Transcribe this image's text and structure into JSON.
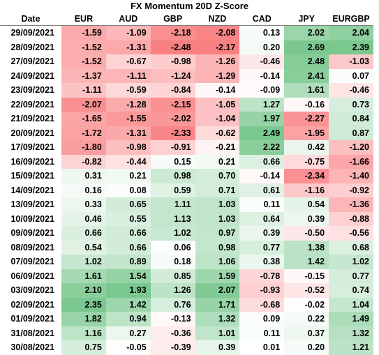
{
  "title": "FX Momentum 20D Z-Score",
  "columns": [
    "Date",
    "EUR",
    "AUD",
    "GBP",
    "NZD",
    "CAD",
    "JPY",
    "EURGBP"
  ],
  "colors": {
    "negative_max": "#f8696b",
    "positive_max": "#63be7b",
    "neutral": "#ffffff"
  },
  "rows": [
    {
      "date": "29/09/2021",
      "values": [
        "-1.59",
        "-1.09",
        "-2.18",
        "-2.08",
        "0.13",
        "2.02",
        "2.04"
      ]
    },
    {
      "date": "28/09/2021",
      "values": [
        "-1.52",
        "-1.31",
        "-2.48",
        "-2.17",
        "0.20",
        "2.69",
        "2.39"
      ]
    },
    {
      "date": "27/09/2021",
      "values": [
        "-1.52",
        "-0.67",
        "-0.98",
        "-1.26",
        "-0.46",
        "2.48",
        "-1.03"
      ]
    },
    {
      "date": "24/09/2021",
      "values": [
        "-1.37",
        "-1.11",
        "-1.24",
        "-1.29",
        "-0.14",
        "2.41",
        "0.07"
      ]
    },
    {
      "date": "23/09/2021",
      "values": [
        "-1.11",
        "-0.59",
        "-0.84",
        "-0.14",
        "-0.09",
        "1.61",
        "-0.46"
      ]
    },
    {
      "date": "22/09/2021",
      "values": [
        "-2.07",
        "-1.28",
        "-2.15",
        "-1.05",
        "1.27",
        "-0.16",
        "0.73"
      ]
    },
    {
      "date": "21/09/2021",
      "values": [
        "-1.65",
        "-1.55",
        "-2.02",
        "-1.04",
        "1.97",
        "-2.27",
        "0.84"
      ]
    },
    {
      "date": "20/09/2021",
      "values": [
        "-1.72",
        "-1.31",
        "-2.33",
        "-0.62",
        "2.49",
        "-1.95",
        "0.87"
      ]
    },
    {
      "date": "17/09/2021",
      "values": [
        "-1.80",
        "-0.98",
        "-0.91",
        "-0.21",
        "2.22",
        "0.42",
        "-1.20"
      ]
    },
    {
      "date": "16/09/2021",
      "values": [
        "-0.82",
        "-0.44",
        "0.15",
        "0.21",
        "0.66",
        "-0.75",
        "-1.66"
      ]
    },
    {
      "date": "15/09/2021",
      "values": [
        "0.31",
        "0.21",
        "0.98",
        "0.70",
        "-0.14",
        "-2.34",
        "-1.40"
      ]
    },
    {
      "date": "14/09/2021",
      "values": [
        "0.16",
        "0.08",
        "0.59",
        "0.71",
        "0.61",
        "-1.16",
        "-0.92"
      ]
    },
    {
      "date": "13/09/2021",
      "values": [
        "0.33",
        "0.65",
        "1.11",
        "1.03",
        "0.11",
        "0.54",
        "-1.36"
      ]
    },
    {
      "date": "10/09/2021",
      "values": [
        "0.46",
        "0.55",
        "1.13",
        "1.03",
        "0.64",
        "0.39",
        "-0.88"
      ]
    },
    {
      "date": "09/09/2021",
      "values": [
        "0.66",
        "0.66",
        "1.02",
        "0.97",
        "0.39",
        "-0.50",
        "-0.56"
      ]
    },
    {
      "date": "08/09/2021",
      "values": [
        "0.54",
        "0.66",
        "0.06",
        "0.98",
        "0.77",
        "1.38",
        "0.68"
      ]
    },
    {
      "date": "07/09/2021",
      "values": [
        "1.02",
        "0.89",
        "0.18",
        "1.06",
        "0.38",
        "1.42",
        "1.02"
      ]
    },
    {
      "date": "06/09/2021",
      "values": [
        "1.61",
        "1.54",
        "0.85",
        "1.59",
        "-0.78",
        "-0.15",
        "0.77"
      ]
    },
    {
      "date": "03/09/2021",
      "values": [
        "2.10",
        "1.93",
        "1.26",
        "2.07",
        "-0.93",
        "-0.52",
        "0.74"
      ]
    },
    {
      "date": "02/09/2021",
      "values": [
        "2.35",
        "1.42",
        "0.76",
        "1.71",
        "-0.68",
        "-0.02",
        "1.04"
      ]
    },
    {
      "date": "01/09/2021",
      "values": [
        "1.82",
        "0.94",
        "-0.13",
        "1.32",
        "0.09",
        "0.22",
        "1.49"
      ]
    },
    {
      "date": "31/08/2021",
      "values": [
        "1.16",
        "0.27",
        "-0.36",
        "1.01",
        "0.11",
        "0.37",
        "1.32"
      ]
    },
    {
      "date": "30/08/2021",
      "values": [
        "0.75",
        "-0.05",
        "-0.39",
        "0.39",
        "0.01",
        "0.20",
        "1.21"
      ]
    }
  ]
}
